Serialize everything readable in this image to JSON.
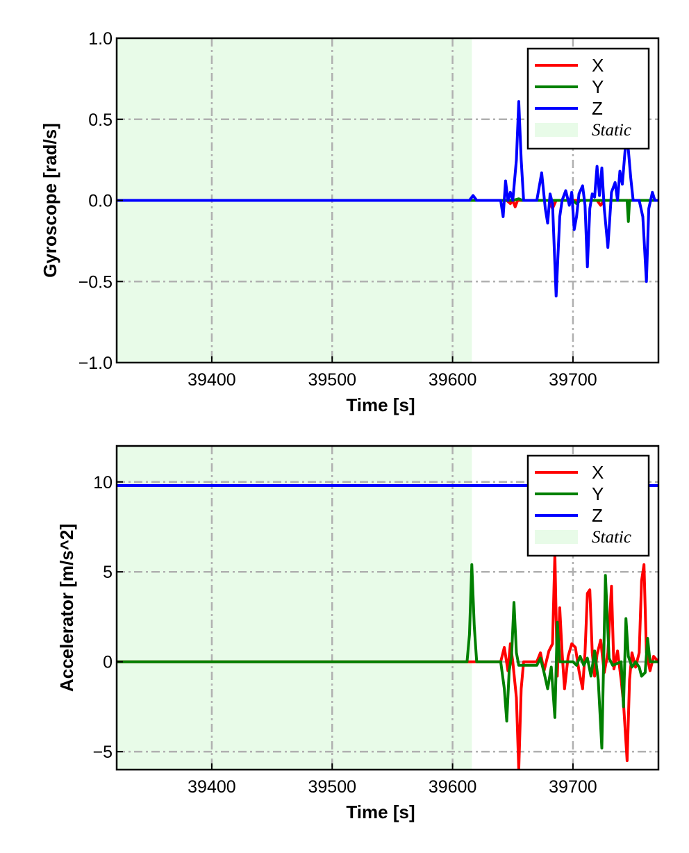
{
  "chart_data": [
    {
      "type": "line",
      "xlabel": "Time [s]",
      "ylabel": "Gyroscope [rad/s]",
      "xlim": [
        39321,
        39771
      ],
      "ylim": [
        -1.0,
        1.0
      ],
      "xticks": [
        39400,
        39500,
        39600,
        39700
      ],
      "xtick_labels": [
        "39400",
        "39500",
        "39600",
        "39700"
      ],
      "yticks": [
        -1.0,
        -0.5,
        0.0,
        0.5,
        1.0
      ],
      "ytick_labels": [
        "−1.0",
        "−0.5",
        "0.0",
        "0.5",
        "1.0"
      ],
      "grid": true,
      "legend_position": "top-right",
      "static_region": {
        "label": "Static",
        "x": [
          39321,
          39616
        ],
        "color": "#e8fbe8"
      },
      "series": [
        {
          "name": "X",
          "color": "#ff0000",
          "points": [
            [
              39321,
              0
            ],
            [
              39616,
              0
            ],
            [
              39645,
              0
            ],
            [
              39648,
              -0.02
            ],
            [
              39650,
              0
            ],
            [
              39652,
              -0.04
            ],
            [
              39654,
              0
            ],
            [
              39680,
              0
            ],
            [
              39683,
              -0.05
            ],
            [
              39686,
              0
            ],
            [
              39720,
              0
            ],
            [
              39723,
              -0.03
            ],
            [
              39726,
              0
            ],
            [
              39771,
              0
            ]
          ]
        },
        {
          "name": "Y",
          "color": "#008000",
          "points": [
            [
              39321,
              0
            ],
            [
              39616,
              0
            ],
            [
              39650,
              0
            ],
            [
              39655,
              0.01
            ],
            [
              39658,
              0
            ],
            [
              39700,
              0
            ],
            [
              39703,
              -0.02
            ],
            [
              39706,
              0
            ],
            [
              39745,
              0
            ],
            [
              39746,
              -0.13
            ],
            [
              39747,
              0
            ],
            [
              39771,
              0
            ]
          ]
        },
        {
          "name": "Z",
          "color": "#0000ff",
          "points": [
            [
              39321,
              0
            ],
            [
              39614,
              0
            ],
            [
              39617,
              0.03
            ],
            [
              39620,
              0
            ],
            [
              39640,
              0
            ],
            [
              39642,
              -0.1
            ],
            [
              39644,
              0.12
            ],
            [
              39646,
              0
            ],
            [
              39648,
              0.05
            ],
            [
              39650,
              0
            ],
            [
              39653,
              0.25
            ],
            [
              39655,
              0.61
            ],
            [
              39657,
              0.25
            ],
            [
              39659,
              0
            ],
            [
              39670,
              0
            ],
            [
              39674,
              0.17
            ],
            [
              39677,
              -0.05
            ],
            [
              39679,
              -0.14
            ],
            [
              39681,
              0.04
            ],
            [
              39683,
              -0.02
            ],
            [
              39686,
              -0.59
            ],
            [
              39689,
              -0.1
            ],
            [
              39691,
              0
            ],
            [
              39694,
              0.06
            ],
            [
              39697,
              -0.03
            ],
            [
              39699,
              0.05
            ],
            [
              39701,
              -0.18
            ],
            [
              39703,
              -0.1
            ],
            [
              39705,
              0.04
            ],
            [
              39708,
              0.09
            ],
            [
              39710,
              -0.03
            ],
            [
              39712,
              -0.41
            ],
            [
              39714,
              -0.05
            ],
            [
              39716,
              0.04
            ],
            [
              39718,
              0.02
            ],
            [
              39720,
              0.21
            ],
            [
              39722,
              0.03
            ],
            [
              39724,
              0.2
            ],
            [
              39726,
              -0.05
            ],
            [
              39729,
              -0.29
            ],
            [
              39732,
              0.05
            ],
            [
              39735,
              0.11
            ],
            [
              39737,
              0
            ],
            [
              39739,
              0.18
            ],
            [
              39741,
              0.1
            ],
            [
              39744,
              0.37
            ],
            [
              39746,
              0.31
            ],
            [
              39748,
              0.14
            ],
            [
              39750,
              0
            ],
            [
              39755,
              0
            ],
            [
              39758,
              -0.1
            ],
            [
              39761,
              -0.5
            ],
            [
              39763,
              -0.05
            ],
            [
              39766,
              0.05
            ],
            [
              39768,
              0
            ],
            [
              39771,
              0
            ]
          ]
        }
      ]
    },
    {
      "type": "line",
      "xlabel": "Time [s]",
      "ylabel": "Accelerator [m/s^2]",
      "xlim": [
        39321,
        39771
      ],
      "ylim": [
        -6,
        12
      ],
      "xticks": [
        39400,
        39500,
        39600,
        39700
      ],
      "xtick_labels": [
        "39400",
        "39500",
        "39600",
        "39700"
      ],
      "yticks": [
        -5,
        0,
        5,
        10
      ],
      "ytick_labels": [
        "−5",
        "0",
        "5",
        "10"
      ],
      "grid": true,
      "legend_position": "top-right",
      "static_region": {
        "label": "Static",
        "x": [
          39321,
          39616
        ],
        "color": "#e8fbe8"
      },
      "series": [
        {
          "name": "X",
          "color": "#ff0000",
          "points": [
            [
              39321,
              0
            ],
            [
              39616,
              0
            ],
            [
              39640,
              0
            ],
            [
              39643,
              0.8
            ],
            [
              39646,
              -0.5
            ],
            [
              39648,
              1.0
            ],
            [
              39650,
              0
            ],
            [
              39653,
              -2.0
            ],
            [
              39655,
              -6.0
            ],
            [
              39657,
              -1.5
            ],
            [
              39659,
              0
            ],
            [
              39670,
              0
            ],
            [
              39673,
              0.5
            ],
            [
              39676,
              -0.5
            ],
            [
              39680,
              0.6
            ],
            [
              39683,
              1.0
            ],
            [
              39685,
              6.0
            ],
            [
              39687,
              -0.8
            ],
            [
              39689,
              3.0
            ],
            [
              39691,
              0.5
            ],
            [
              39693,
              -1.5
            ],
            [
              39696,
              0.3
            ],
            [
              39699,
              1.0
            ],
            [
              39702,
              0.8
            ],
            [
              39705,
              -0.5
            ],
            [
              39708,
              -1.5
            ],
            [
              39710,
              0.5
            ],
            [
              39712,
              3.8
            ],
            [
              39714,
              4.0
            ],
            [
              39716,
              0.5
            ],
            [
              39718,
              -0.8
            ],
            [
              39720,
              0.4
            ],
            [
              39723,
              1.2
            ],
            [
              39726,
              -0.6
            ],
            [
              39729,
              0.5
            ],
            [
              39732,
              4.2
            ],
            [
              39734,
              -0.4
            ],
            [
              39737,
              0.6
            ],
            [
              39740,
              -1.0
            ],
            [
              39742,
              -2.3
            ],
            [
              39745,
              -5.5
            ],
            [
              39747,
              -1.0
            ],
            [
              39749,
              0.5
            ],
            [
              39752,
              -0.3
            ],
            [
              39755,
              0.5
            ],
            [
              39757,
              4.5
            ],
            [
              39759,
              5.4
            ],
            [
              39761,
              0.5
            ],
            [
              39764,
              -0.5
            ],
            [
              39767,
              0.3
            ],
            [
              39771,
              0
            ]
          ]
        },
        {
          "name": "Y",
          "color": "#008000",
          "points": [
            [
              39321,
              0
            ],
            [
              39612,
              0
            ],
            [
              39614,
              1.5
            ],
            [
              39616,
              5.4
            ],
            [
              39618,
              2.0
            ],
            [
              39620,
              0
            ],
            [
              39640,
              0
            ],
            [
              39643,
              -1.5
            ],
            [
              39645,
              -3.3
            ],
            [
              39647,
              -0.5
            ],
            [
              39649,
              0.3
            ],
            [
              39651,
              3.3
            ],
            [
              39653,
              0.5
            ],
            [
              39655,
              -0.2
            ],
            [
              39670,
              -0.2
            ],
            [
              39673,
              0.2
            ],
            [
              39676,
              -0.6
            ],
            [
              39679,
              -1.5
            ],
            [
              39682,
              -0.3
            ],
            [
              39685,
              -3.1
            ],
            [
              39687,
              2.2
            ],
            [
              39689,
              0
            ],
            [
              39700,
              0
            ],
            [
              39703,
              -0.2
            ],
            [
              39706,
              0.3
            ],
            [
              39709,
              -0.2
            ],
            [
              39712,
              0.2
            ],
            [
              39715,
              -0.8
            ],
            [
              39718,
              0.6
            ],
            [
              39721,
              -1.0
            ],
            [
              39724,
              -4.8
            ],
            [
              39727,
              4.8
            ],
            [
              39730,
              0.2
            ],
            [
              39733,
              -0.2
            ],
            [
              39740,
              0
            ],
            [
              39742,
              -2.5
            ],
            [
              39744,
              2.4
            ],
            [
              39746,
              0.3
            ],
            [
              39749,
              -0.3
            ],
            [
              39752,
              0
            ],
            [
              39755,
              -0.3
            ],
            [
              39757,
              -0.8
            ],
            [
              39760,
              -0.6
            ],
            [
              39762,
              1.3
            ],
            [
              39764,
              0
            ],
            [
              39771,
              0
            ]
          ]
        },
        {
          "name": "Z",
          "color": "#0000ff",
          "points": [
            [
              39321,
              9.8
            ],
            [
              39771,
              9.8
            ]
          ]
        }
      ]
    }
  ]
}
